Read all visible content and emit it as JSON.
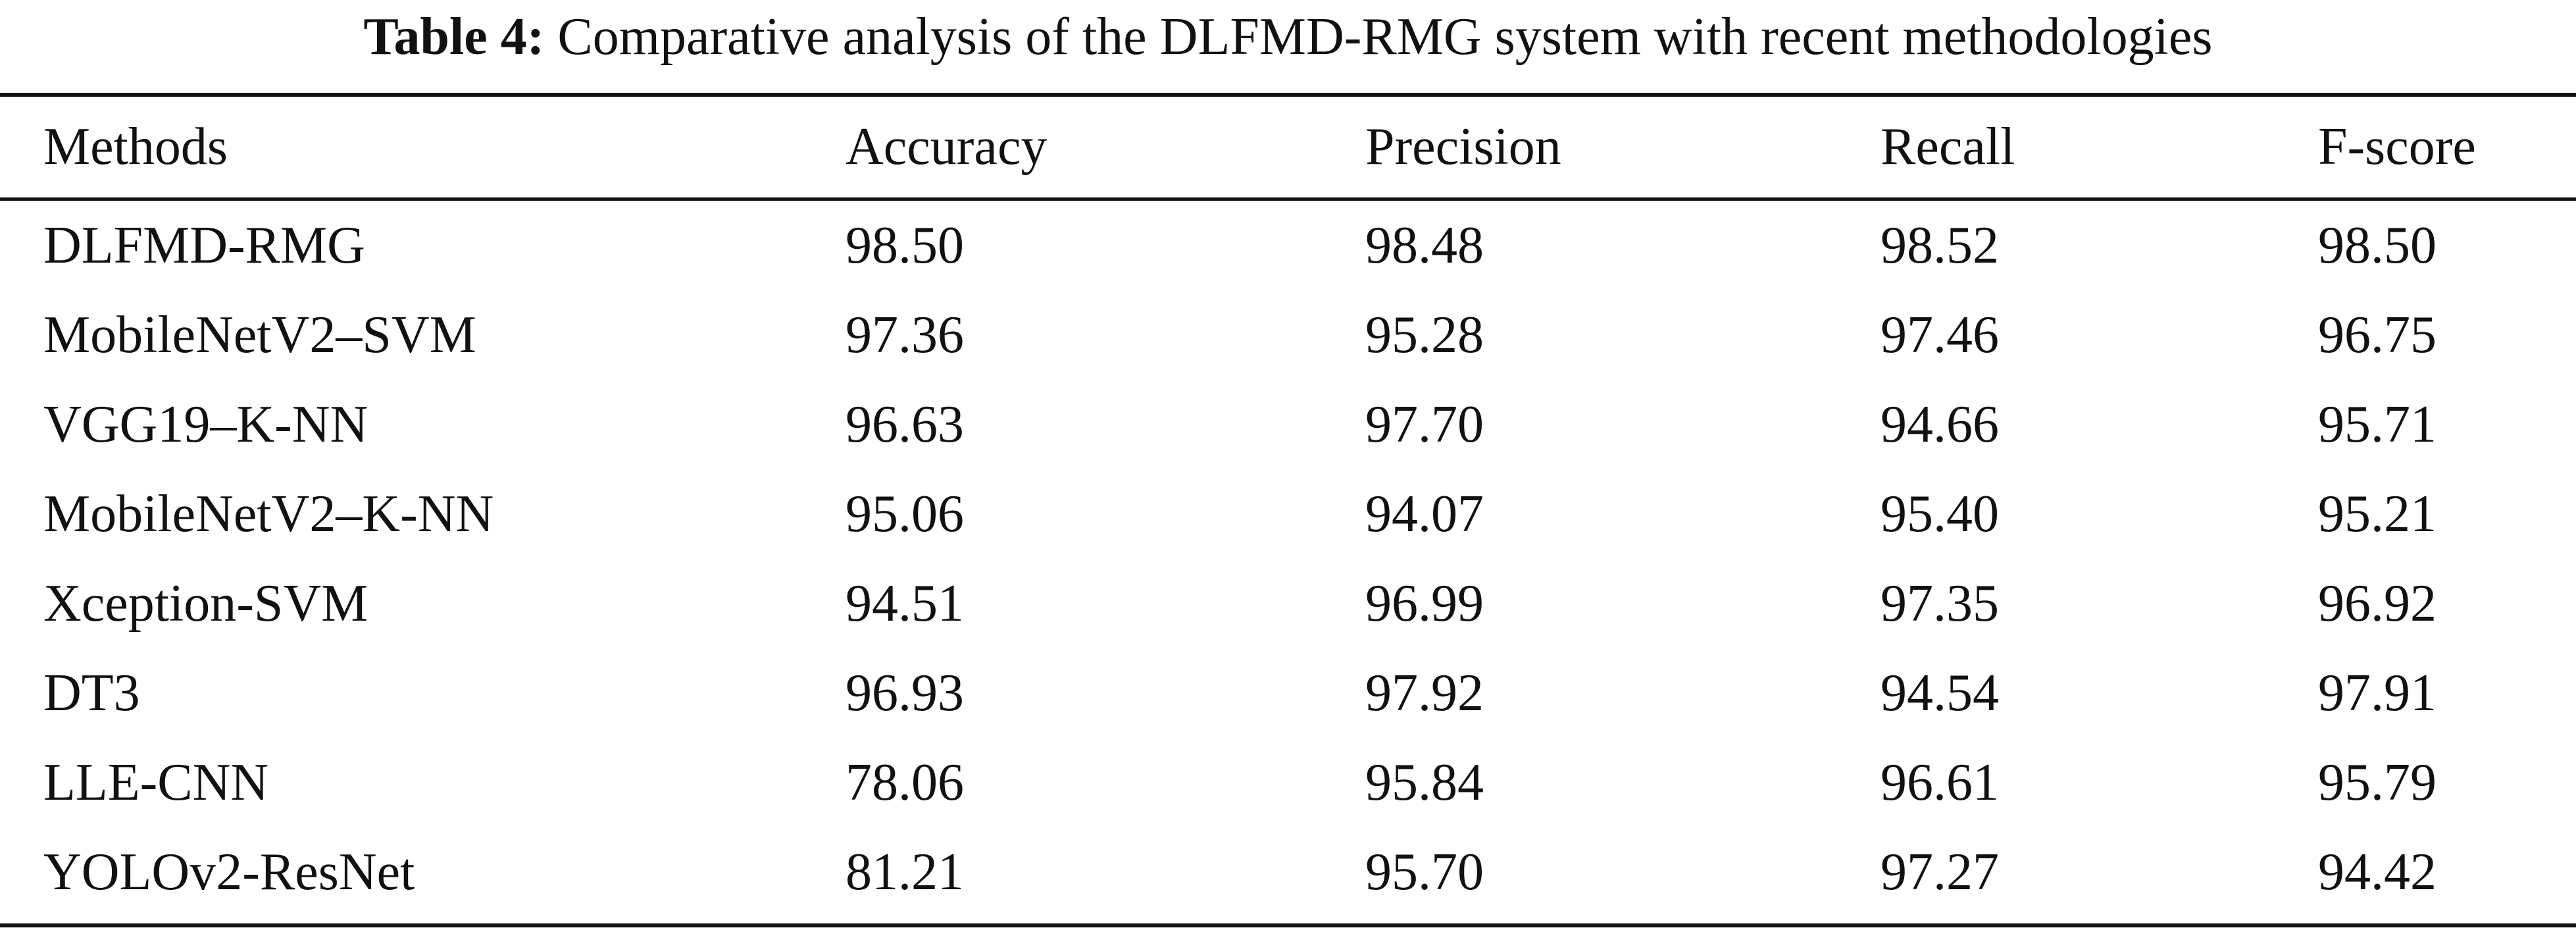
{
  "caption": {
    "label": "Table 4:",
    "text": "Comparative analysis of the DLFMD-RMG system with recent methodologies"
  },
  "columns": [
    "Methods",
    "Accuracy",
    "Precision",
    "Recall",
    "F-score"
  ],
  "rows": [
    [
      "DLFMD-RMG",
      "98.50",
      "98.48",
      "98.52",
      "98.50"
    ],
    [
      "MobileNetV2–SVM",
      "97.36",
      "95.28",
      "97.46",
      "96.75"
    ],
    [
      "VGG19–K-NN",
      "96.63",
      "97.70",
      "94.66",
      "95.71"
    ],
    [
      "MobileNetV2–K-NN",
      "95.06",
      "94.07",
      "95.40",
      "95.21"
    ],
    [
      "Xception-SVM",
      "94.51",
      "96.99",
      "97.35",
      "96.92"
    ],
    [
      "DT3",
      "96.93",
      "97.92",
      "94.54",
      "97.91"
    ],
    [
      "LLE-CNN",
      "78.06",
      "95.84",
      "96.61",
      "95.79"
    ],
    [
      "YOLOv2-ResNet",
      "81.21",
      "95.70",
      "97.27",
      "94.42"
    ]
  ]
}
